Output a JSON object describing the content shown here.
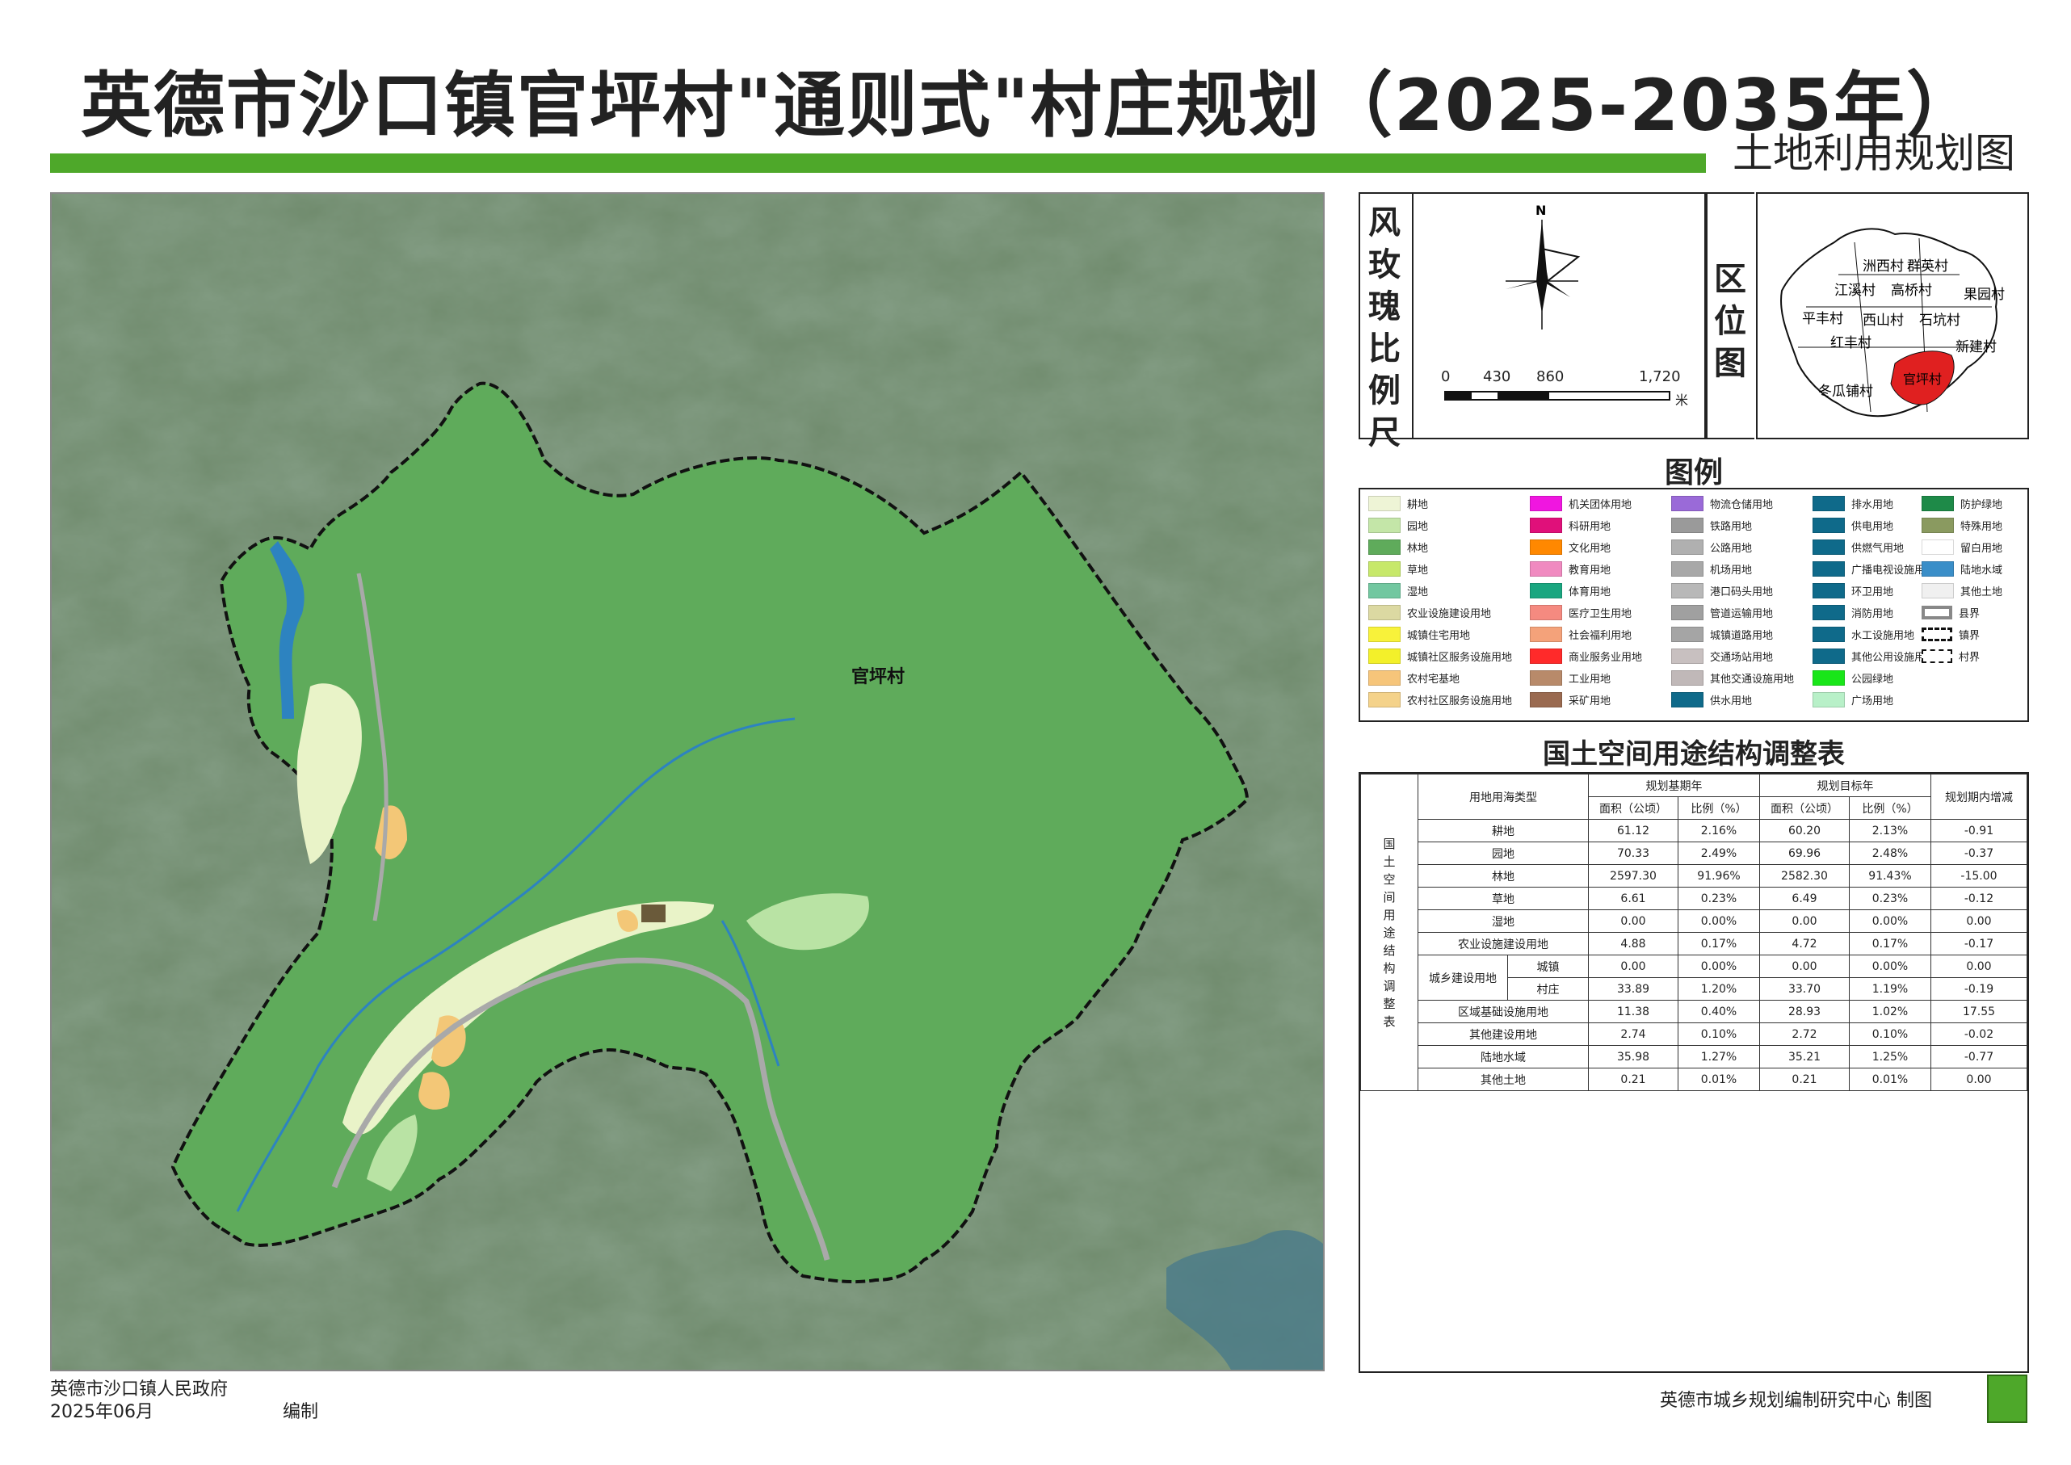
{
  "title": "英德市沙口镇官坪村\"通则式\"村庄规划（2025-2035年）",
  "subtitle": "土地利用规划图",
  "map": {
    "village_label": "官坪村",
    "colors": {
      "forest": "#5fab5b",
      "imagery": "#5e7a5c",
      "imagery_light": "#8ea08a",
      "farmland": "#e9f3c8",
      "garden": "#b9e3a4",
      "homestead": "#f3c777",
      "water": "#2d83c0",
      "road": "#a9a9a9",
      "boundary": "#111111"
    }
  },
  "scale_panel": {
    "label": "风玫瑰比例尺",
    "north": "N",
    "ticks": [
      "0",
      "430",
      "860",
      "1,720"
    ],
    "unit": "米"
  },
  "location_panel": {
    "label": "区位图",
    "villages": [
      "洲西村",
      "群英村",
      "江溪村",
      "高桥村",
      "果园村",
      "平丰村",
      "西山村",
      "石坑村",
      "红丰村",
      "新建村",
      "冬瓜铺村",
      "官坪村"
    ],
    "highlight_color": "#e02020"
  },
  "legend": {
    "title": "图例",
    "columns": [
      [
        {
          "label": "耕地",
          "color": "#eef4d6"
        },
        {
          "label": "园地",
          "color": "#c4e6a8"
        },
        {
          "label": "林地",
          "color": "#5fab5b"
        },
        {
          "label": "草地",
          "color": "#c7e86a"
        },
        {
          "label": "湿地",
          "color": "#72c7a0"
        },
        {
          "label": "农业设施建设用地",
          "color": "#dcd9a2"
        },
        {
          "label": "城镇住宅用地",
          "color": "#f8f23a"
        },
        {
          "label": "城镇社区服务设施用地",
          "color": "#f3f02a"
        },
        {
          "label": "农村宅基地",
          "color": "#f6c57a"
        },
        {
          "label": "农村社区服务设施用地",
          "color": "#f4d28a"
        }
      ],
      [
        {
          "label": "机关团体用地",
          "color": "#f016e0"
        },
        {
          "label": "科研用地",
          "color": "#e0107a"
        },
        {
          "label": "文化用地",
          "color": "#ff8800"
        },
        {
          "label": "教育用地",
          "color": "#f08ac0"
        },
        {
          "label": "体育用地",
          "color": "#1aa680"
        },
        {
          "label": "医疗卫生用地",
          "color": "#f58a80"
        },
        {
          "label": "社会福利用地",
          "color": "#f4a27a"
        },
        {
          "label": "商业服务业用地",
          "color": "#ff2a2a"
        },
        {
          "label": "工业用地",
          "color": "#b88a6a"
        },
        {
          "label": "采矿用地",
          "color": "#9a6a50"
        }
      ],
      [
        {
          "label": "物流仓储用地",
          "color": "#9a6ad8"
        },
        {
          "label": "铁路用地",
          "color": "#9a9a9a"
        },
        {
          "label": "公路用地",
          "color": "#b0b0b0"
        },
        {
          "label": "机场用地",
          "color": "#a8a8a8"
        },
        {
          "label": "港口码头用地",
          "color": "#b8b8b8"
        },
        {
          "label": "管道运输用地",
          "color": "#a0a0a0"
        },
        {
          "label": "城镇道路用地",
          "color": "#a5a5a5"
        },
        {
          "label": "交通场站用地",
          "color": "#c8c0c0"
        },
        {
          "label": "其他交通设施用地",
          "color": "#c0b8b8"
        },
        {
          "label": "供水用地",
          "color": "#0f6a8a"
        }
      ],
      [
        {
          "label": "排水用地",
          "color": "#0f6a8a"
        },
        {
          "label": "供电用地",
          "color": "#0f6a8a"
        },
        {
          "label": "供燃气用地",
          "color": "#0f6a8a"
        },
        {
          "label": "广播电视设施用地",
          "color": "#0f6a8a"
        },
        {
          "label": "环卫用地",
          "color": "#0f6a8a"
        },
        {
          "label": "消防用地",
          "color": "#0f6a8a"
        },
        {
          "label": "水工设施用地",
          "color": "#0f6a8a"
        },
        {
          "label": "其他公用设施用地",
          "color": "#0f6a8a"
        },
        {
          "label": "公园绿地",
          "color": "#19e619"
        },
        {
          "label": "广场用地",
          "color": "#b8f0c8"
        }
      ],
      [
        {
          "label": "防护绿地",
          "color": "#1e8a48"
        },
        {
          "label": "特殊用地",
          "color": "#8a9a60"
        },
        {
          "label": "留白用地",
          "color": "#ffffff"
        },
        {
          "label": "陆地水域",
          "color": "#3a8ec8"
        },
        {
          "label": "其他土地",
          "color": "#f0f0f0"
        },
        {
          "label": "县界",
          "color": "boundary-county"
        },
        {
          "label": "镇界",
          "color": "boundary-town"
        },
        {
          "label": "村界",
          "color": "boundary-village"
        }
      ]
    ]
  },
  "table": {
    "title": "国土空间用途结构调整表",
    "side_label": "国土空间用途结构调整表",
    "header": {
      "type": "用地用海类型",
      "base": "规划基期年",
      "target": "规划目标年",
      "change": "规划期内增减",
      "area": "面积（公顷）",
      "ratio": "比例（%）"
    },
    "rows": [
      {
        "name": "耕地",
        "a1": "61.12",
        "r1": "2.16%",
        "a2": "60.20",
        "r2": "2.13%",
        "d": "-0.91"
      },
      {
        "name": "园地",
        "a1": "70.33",
        "r1": "2.49%",
        "a2": "69.96",
        "r2": "2.48%",
        "d": "-0.37"
      },
      {
        "name": "林地",
        "a1": "2597.30",
        "r1": "91.96%",
        "a2": "2582.30",
        "r2": "91.43%",
        "d": "-15.00"
      },
      {
        "name": "草地",
        "a1": "6.61",
        "r1": "0.23%",
        "a2": "6.49",
        "r2": "0.23%",
        "d": "-0.12"
      },
      {
        "name": "湿地",
        "a1": "0.00",
        "r1": "0.00%",
        "a2": "0.00",
        "r2": "0.00%",
        "d": "0.00"
      },
      {
        "name": "农业设施建设用地",
        "a1": "4.88",
        "r1": "0.17%",
        "a2": "4.72",
        "r2": "0.17%",
        "d": "-0.17"
      }
    ],
    "urban_rural": {
      "name": "城乡建设用地",
      "sub": [
        {
          "name": "城镇",
          "a1": "0.00",
          "r1": "0.00%",
          "a2": "0.00",
          "r2": "0.00%",
          "d": "0.00"
        },
        {
          "name": "村庄",
          "a1": "33.89",
          "r1": "1.20%",
          "a2": "33.70",
          "r2": "1.19%",
          "d": "-0.19"
        }
      ]
    },
    "rows2": [
      {
        "name": "区域基础设施用地",
        "a1": "11.38",
        "r1": "0.40%",
        "a2": "28.93",
        "r2": "1.02%",
        "d": "17.55"
      },
      {
        "name": "其他建设用地",
        "a1": "2.74",
        "r1": "0.10%",
        "a2": "2.72",
        "r2": "0.10%",
        "d": "-0.02"
      },
      {
        "name": "陆地水域",
        "a1": "35.98",
        "r1": "1.27%",
        "a2": "35.21",
        "r2": "1.25%",
        "d": "-0.77"
      },
      {
        "name": "其他土地",
        "a1": "0.21",
        "r1": "0.01%",
        "a2": "0.21",
        "r2": "0.01%",
        "d": "0.00"
      }
    ]
  },
  "footer": {
    "gov": "英德市沙口镇人民政府",
    "date": "2025年06月",
    "made": "编制",
    "drawn_by": "英德市城乡规划编制研究中心 制图"
  }
}
